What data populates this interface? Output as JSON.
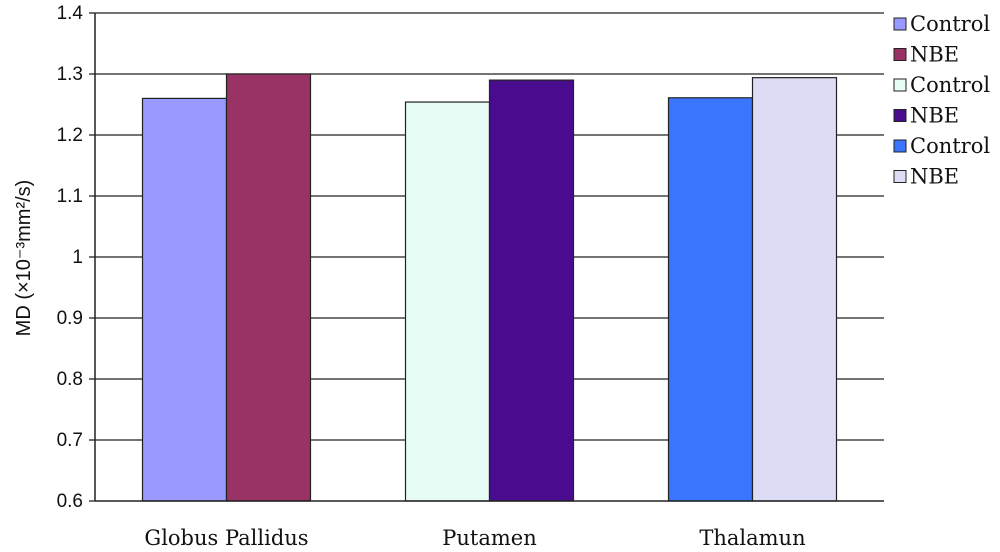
{
  "chart_data": {
    "type": "bar",
    "title": "",
    "xlabel": "",
    "ylabel": "MD (×10⁻³mm²/s)",
    "ylim": [
      0.6,
      1.4
    ],
    "yticks": [
      "0.6",
      "0.7",
      "0.8",
      "0.9",
      "1",
      "1.1",
      "1.2",
      "1.3",
      "1.4"
    ],
    "grid": true,
    "legend_position": "right",
    "categories": [
      "Globus Pallidus",
      "Putamen",
      "Thalamun"
    ],
    "groups": [
      {
        "category": "Globus Pallidus",
        "bars": [
          {
            "name": "Control",
            "value": 1.26,
            "color": "#9999ff"
          },
          {
            "name": "NBE",
            "value": 1.3,
            "color": "#993366"
          }
        ]
      },
      {
        "category": "Putamen",
        "bars": [
          {
            "name": "Control",
            "value": 1.254,
            "color": "#e6fcf5"
          },
          {
            "name": "NBE",
            "value": 1.29,
            "color": "#4a0c8f"
          }
        ]
      },
      {
        "category": "Thalamun",
        "bars": [
          {
            "name": "Control",
            "value": 1.261,
            "color": "#3a75ff"
          },
          {
            "name": "NBE",
            "value": 1.294,
            "color": "#dcdcf5"
          }
        ]
      }
    ],
    "legend": [
      {
        "label": "Control",
        "color": "#9999ff"
      },
      {
        "label": "NBE",
        "color": "#993366"
      },
      {
        "label": "Control",
        "color": "#e6fcf5"
      },
      {
        "label": "NBE",
        "color": "#4a0c8f"
      },
      {
        "label": "Control",
        "color": "#3a75ff"
      },
      {
        "label": "NBE",
        "color": "#dcdcf5"
      }
    ]
  }
}
